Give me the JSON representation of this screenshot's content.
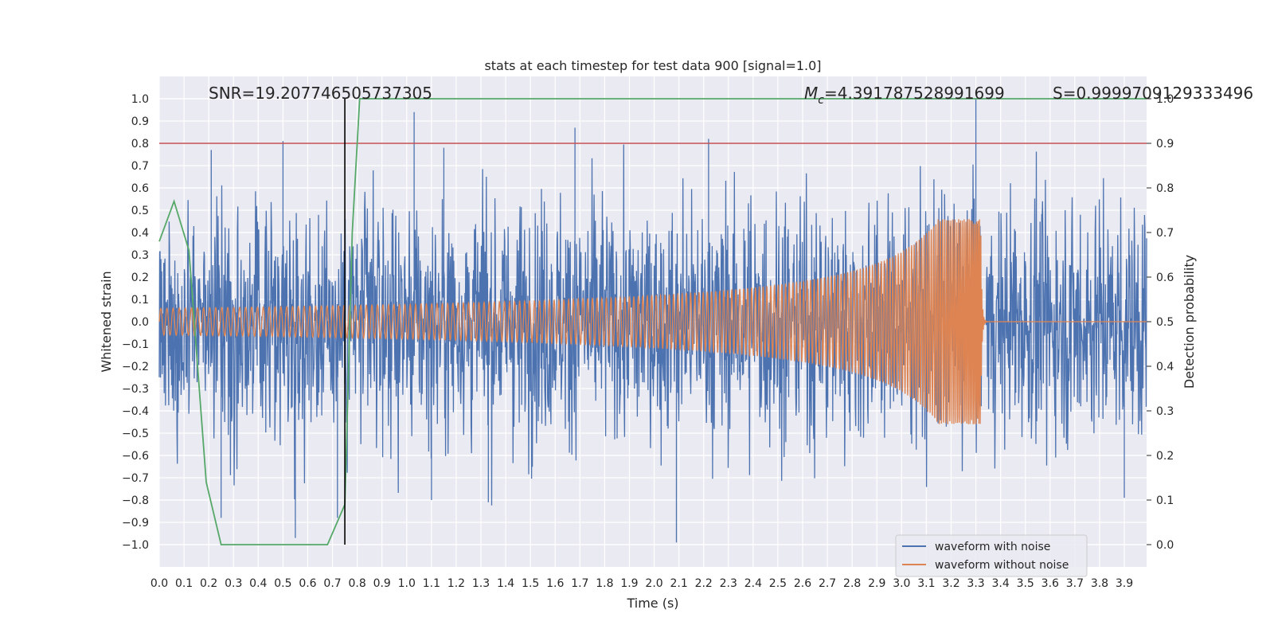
{
  "chart_data": {
    "type": "line",
    "title": "stats at each timestep for test data 900 [signal=1.0]",
    "xlabel": "Time (s)",
    "ylabel_left": "Whitened strain",
    "ylabel_right": "Detection probability",
    "xlim": [
      0.0,
      3.99
    ],
    "ylim_left": [
      -1.1,
      1.1
    ],
    "ylim_right": [
      -0.05,
      1.05
    ],
    "x_ticks": [
      "0.0",
      "0.1",
      "0.2",
      "0.3",
      "0.4",
      "0.5",
      "0.6",
      "0.7",
      "0.8",
      "0.9",
      "1.0",
      "1.1",
      "1.2",
      "1.3",
      "1.4",
      "1.5",
      "1.6",
      "1.7",
      "1.8",
      "1.9",
      "2.0",
      "2.1",
      "2.2",
      "2.3",
      "2.4",
      "2.5",
      "2.6",
      "2.7",
      "2.8",
      "2.9",
      "3.0",
      "3.1",
      "3.2",
      "3.3",
      "3.4",
      "3.5",
      "3.6",
      "3.7",
      "3.8",
      "3.9"
    ],
    "y_ticks_left": [
      "1.0",
      "0.9",
      "0.8",
      "0.7",
      "0.6",
      "0.5",
      "0.4",
      "0.3",
      "0.2",
      "0.1",
      "0.0",
      "−0.1",
      "−0.2",
      "−0.3",
      "−0.4",
      "−0.5",
      "−0.6",
      "−0.7",
      "−0.8",
      "−0.9",
      "−1.0"
    ],
    "y_ticks_right": [
      "1.0",
      "0.9",
      "0.8",
      "0.7",
      "0.6",
      "0.5",
      "0.4",
      "0.3",
      "0.2",
      "0.1",
      "0.0"
    ],
    "threshold": {
      "axis": "right",
      "value": 0.9,
      "color": "#c44e52"
    },
    "vline": {
      "x": 0.75,
      "ymin": -1.0,
      "ymax": 1.0,
      "color": "#000000"
    },
    "annotations": {
      "snr": "SNR=19.207746505737305",
      "mc_symbol": "M",
      "mc_sub": "c",
      "mc_value": "=4.391787528991699",
      "s": "S=0.9999709129333496"
    },
    "series": [
      {
        "name": "waveform with noise",
        "color": "#4c72b0",
        "kind": "noise",
        "envelope": 0.55,
        "spikes": [
          [
            0.21,
            0.77
          ],
          [
            0.5,
            0.81
          ],
          [
            0.25,
            -0.88
          ],
          [
            0.55,
            -0.97
          ],
          [
            1.03,
            0.94
          ],
          [
            1.15,
            0.78
          ],
          [
            1.68,
            0.87
          ],
          [
            2.09,
            -0.99
          ],
          [
            2.22,
            0.82
          ],
          [
            3.3,
            1.0
          ],
          [
            3.9,
            -0.79
          ],
          [
            1.1,
            -0.8
          ],
          [
            1.33,
            -0.81
          ],
          [
            0.72,
            -0.88
          ]
        ]
      },
      {
        "name": "waveform without noise",
        "color": "#dd8452",
        "kind": "chirp",
        "merger_time": 3.32,
        "f0": 40,
        "f1": 250,
        "a0": 0.06,
        "a_peak": 0.46
      },
      {
        "name": "detection probability",
        "color": "#55a868",
        "axis": "right",
        "x": [
          0.0,
          0.06,
          0.12,
          0.19,
          0.25,
          0.31,
          0.5,
          0.68,
          0.75,
          0.78,
          0.81,
          3.99
        ],
        "y": [
          0.68,
          0.77,
          0.66,
          0.14,
          0.0,
          0.0,
          0.0,
          0.0,
          0.09,
          0.7,
          1.0,
          1.0
        ]
      }
    ],
    "legend": [
      "waveform with noise",
      "waveform without noise"
    ],
    "legend_position": "lower right",
    "background": "#eaeaf2",
    "grid_color": "#ffffff"
  }
}
